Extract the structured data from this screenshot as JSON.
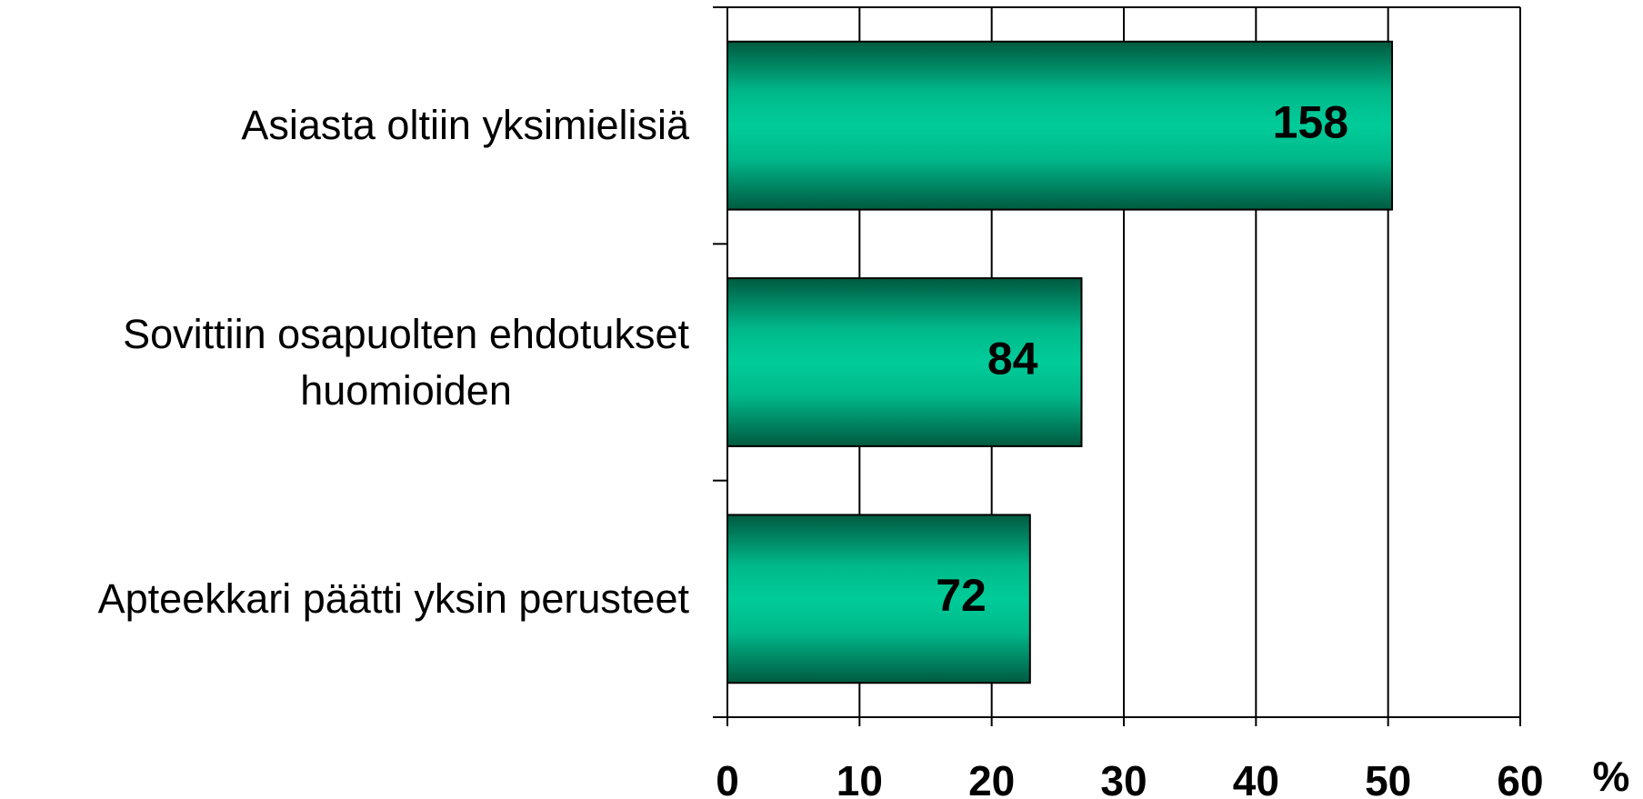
{
  "chart_data": {
    "type": "barh",
    "categories": [
      "Asiasta oltiin yksimielisiä",
      "Sovittiin osapuolten ehdotukset\nhuomioiden",
      "Apteekkari päätti yksin perusteet"
    ],
    "values": [
      50.3,
      26.8,
      22.9
    ],
    "counts": [
      158,
      84,
      72
    ],
    "color": "#00c896",
    "xlim": [
      0,
      60
    ],
    "xticks": [
      0,
      10,
      20,
      30,
      40,
      50,
      60
    ],
    "x_unit": "%",
    "grid": true
  }
}
